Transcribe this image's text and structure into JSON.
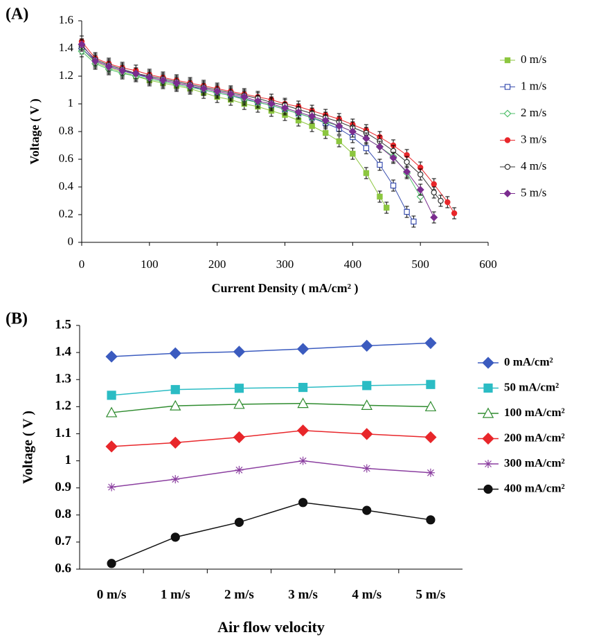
{
  "chart_data": [
    {
      "type": "line",
      "panel_label": "(A)",
      "xlabel": "Current Density ( mA/cm² )",
      "ylabel": "Voltage ( V )",
      "xlim": [
        0,
        600
      ],
      "xticks": [
        0,
        100,
        200,
        300,
        400,
        500,
        600
      ],
      "ylim": [
        0,
        1.6
      ],
      "yticks": [
        0,
        0.2,
        0.4,
        0.6,
        0.8,
        1,
        1.2,
        1.4,
        1.6
      ],
      "series": [
        {
          "name": "0 m/s",
          "color": "#8cc63f",
          "marker": "square",
          "error": 0.04,
          "x": [
            0,
            20,
            40,
            60,
            80,
            100,
            120,
            140,
            160,
            180,
            200,
            220,
            240,
            260,
            280,
            300,
            320,
            340,
            360,
            380,
            400,
            420,
            440,
            450
          ],
          "values": [
            1.4,
            1.3,
            1.26,
            1.23,
            1.2,
            1.17,
            1.15,
            1.13,
            1.11,
            1.08,
            1.05,
            1.03,
            1.0,
            0.98,
            0.95,
            0.92,
            0.88,
            0.84,
            0.79,
            0.73,
            0.64,
            0.5,
            0.33,
            0.25
          ]
        },
        {
          "name": "1 m/s",
          "color": "#3a4fb0",
          "marker": "open-square",
          "error": 0.04,
          "x": [
            0,
            20,
            40,
            60,
            80,
            100,
            120,
            140,
            160,
            180,
            200,
            220,
            240,
            260,
            280,
            300,
            320,
            340,
            360,
            380,
            400,
            420,
            440,
            460,
            480,
            490
          ],
          "values": [
            1.4,
            1.31,
            1.27,
            1.24,
            1.21,
            1.19,
            1.17,
            1.15,
            1.13,
            1.1,
            1.08,
            1.06,
            1.04,
            1.01,
            0.99,
            0.96,
            0.93,
            0.9,
            0.86,
            0.82,
            0.76,
            0.68,
            0.56,
            0.41,
            0.22,
            0.15
          ]
        },
        {
          "name": "2 m/s",
          "color": "#4fbf6a",
          "marker": "open-diamond",
          "error": 0.04,
          "x": [
            0,
            20,
            40,
            60,
            80,
            100,
            120,
            140,
            160,
            180,
            200,
            220,
            240,
            260,
            280,
            300,
            320,
            340,
            360,
            380,
            400,
            420,
            440,
            460,
            480,
            500
          ],
          "values": [
            1.38,
            1.29,
            1.25,
            1.22,
            1.2,
            1.18,
            1.16,
            1.14,
            1.12,
            1.1,
            1.08,
            1.06,
            1.03,
            1.01,
            0.99,
            0.96,
            0.93,
            0.9,
            0.87,
            0.84,
            0.8,
            0.75,
            0.69,
            0.62,
            0.5,
            0.33
          ]
        },
        {
          "name": "3 m/s",
          "color": "#e8262a",
          "marker": "circle",
          "error": 0.04,
          "x": [
            0,
            20,
            40,
            60,
            80,
            100,
            120,
            140,
            160,
            180,
            200,
            220,
            240,
            260,
            280,
            300,
            320,
            340,
            360,
            380,
            400,
            420,
            440,
            460,
            480,
            500,
            520,
            540,
            550
          ],
          "values": [
            1.45,
            1.33,
            1.29,
            1.26,
            1.24,
            1.21,
            1.19,
            1.17,
            1.15,
            1.13,
            1.11,
            1.09,
            1.07,
            1.05,
            1.03,
            1.0,
            0.98,
            0.95,
            0.92,
            0.89,
            0.85,
            0.81,
            0.76,
            0.7,
            0.63,
            0.54,
            0.42,
            0.29,
            0.21
          ]
        },
        {
          "name": "4 m/s",
          "color": "#333333",
          "marker": "open-circle",
          "error": 0.04,
          "x": [
            0,
            20,
            40,
            60,
            80,
            100,
            120,
            140,
            160,
            180,
            200,
            220,
            240,
            260,
            280,
            300,
            320,
            340,
            360,
            380,
            400,
            420,
            440,
            460,
            480,
            500,
            520,
            530
          ],
          "values": [
            1.42,
            1.32,
            1.28,
            1.25,
            1.22,
            1.2,
            1.18,
            1.16,
            1.14,
            1.12,
            1.1,
            1.08,
            1.06,
            1.04,
            1.01,
            0.99,
            0.96,
            0.93,
            0.9,
            0.87,
            0.83,
            0.79,
            0.73,
            0.66,
            0.58,
            0.49,
            0.36,
            0.3
          ]
        },
        {
          "name": "5 m/s",
          "color": "#7b2c8f",
          "marker": "diamond",
          "error": 0.04,
          "x": [
            0,
            20,
            40,
            60,
            80,
            100,
            120,
            140,
            160,
            180,
            200,
            220,
            240,
            260,
            280,
            300,
            320,
            340,
            360,
            380,
            400,
            420,
            440,
            460,
            480,
            500,
            520
          ],
          "values": [
            1.43,
            1.31,
            1.27,
            1.24,
            1.22,
            1.19,
            1.17,
            1.15,
            1.13,
            1.11,
            1.09,
            1.07,
            1.05,
            1.02,
            1.0,
            0.97,
            0.94,
            0.91,
            0.88,
            0.84,
            0.8,
            0.75,
            0.69,
            0.61,
            0.51,
            0.38,
            0.18
          ]
        }
      ]
    },
    {
      "type": "line",
      "panel_label": "(B)",
      "xlabel": "Air flow velocity",
      "ylabel": "Voltage ( V )",
      "categories": [
        "0 m/s",
        "1 m/s",
        "2 m/s",
        "3 m/s",
        "4 m/s",
        "5 m/s"
      ],
      "ylim": [
        0.6,
        1.5
      ],
      "yticks": [
        0.6,
        0.7,
        0.8,
        0.9,
        1,
        1.1,
        1.2,
        1.3,
        1.4,
        1.5
      ],
      "series": [
        {
          "name": "0 mA/cm²",
          "color": "#3b5bbf",
          "marker": "diamond",
          "values": [
            1.385,
            1.397,
            1.403,
            1.413,
            1.425,
            1.435
          ]
        },
        {
          "name": "50 mA/cm²",
          "color": "#2bbcc4",
          "marker": "square",
          "values": [
            1.242,
            1.263,
            1.268,
            1.271,
            1.278,
            1.282
          ]
        },
        {
          "name": "100 mA/cm²",
          "color": "#2e8b2e",
          "marker": "open-triangle",
          "values": [
            1.178,
            1.203,
            1.209,
            1.212,
            1.205,
            1.2
          ]
        },
        {
          "name": "200 mA/cm²",
          "color": "#e8262a",
          "marker": "diamond",
          "values": [
            1.053,
            1.067,
            1.087,
            1.112,
            1.099,
            1.087
          ]
        },
        {
          "name": "300 mA/cm²",
          "color": "#8b3fa0",
          "marker": "star",
          "values": [
            0.903,
            0.932,
            0.966,
            1.0,
            0.972,
            0.956
          ]
        },
        {
          "name": "400 mA/cm²",
          "color": "#111111",
          "marker": "circle",
          "values": [
            0.621,
            0.718,
            0.773,
            0.846,
            0.817,
            0.782
          ]
        }
      ]
    }
  ]
}
